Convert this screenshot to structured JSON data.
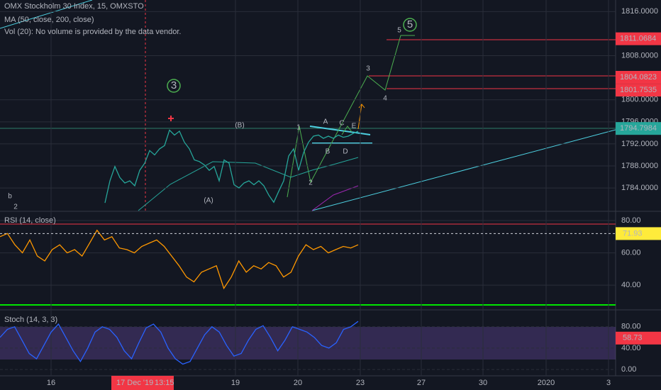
{
  "header": {
    "title": "OMX Stockholm 30 Index, 15, OMXSTO",
    "ma": "MA (50, close, 200, close)",
    "vol": "Vol (20): No volume is provided by the data vendor."
  },
  "price_axis": {
    "ylim": [
      1779.9,
      1818.1
    ],
    "ticks": [
      {
        "value": 1816,
        "label": "1816.0000"
      },
      {
        "value": 1808,
        "label": "1808.0000"
      },
      {
        "value": 1800,
        "label": "1800.0000"
      },
      {
        "value": 1796,
        "label": "1796.0000"
      },
      {
        "value": 1792,
        "label": "1792.0000"
      },
      {
        "value": 1788,
        "label": "1788.0000"
      },
      {
        "value": 1784,
        "label": "1784.0000"
      }
    ]
  },
  "price_tags": [
    {
      "value": 1811.0684,
      "color": "#f23645"
    },
    {
      "value": 1804.0823,
      "color": "#f23645"
    },
    {
      "value": 1801.7535,
      "color": "#f23645"
    },
    {
      "value": 1794.7984,
      "color": "#26a69a"
    }
  ],
  "price": {
    "color": "#26a69a",
    "values": [
      1781.3,
      1785.3,
      1787.9,
      1785.9,
      1784.9,
      1785.3,
      1784.4,
      1787.2,
      1788.5,
      1790.8,
      1790.0,
      1791.1,
      1791.7,
      1794.5,
      1793.6,
      1794.3,
      1792.3,
      1791.1,
      1789.1,
      1788.8,
      1788.2,
      1787.2,
      1787.9,
      1785.3,
      1789.1,
      1788.5,
      1784.6,
      1784.0,
      1784.9,
      1785.3,
      1784.6,
      1785.3,
      1784.4,
      1782.7,
      1781.4,
      1783.4,
      1785.3,
      1789.8,
      1791.1,
      1787.2,
      1790.4,
      1792.3,
      1793.4,
      1793.6,
      1793.0,
      1793.4,
      1793.0,
      1793.6,
      1793.2,
      1793.4,
      1793.9,
      1794.3
    ]
  },
  "annotations": [
    {
      "text": "3",
      "color": "#4caf50",
      "circled": true
    },
    {
      "text": "5",
      "color": "#4caf50",
      "circled": true
    },
    {
      "text": "b",
      "color": "#f23645",
      "circled": false
    },
    {
      "text": "2",
      "color": "#b2b5be",
      "circled": false
    },
    {
      "text": "(B)",
      "color": "#4dd0e1",
      "circled": false
    },
    {
      "text": "(A)",
      "color": "#4dd0e1",
      "circled": false
    },
    {
      "text": "1",
      "color": "#4caf50",
      "circled": false
    },
    {
      "text": "2",
      "color": "#4caf50",
      "circled": false
    },
    {
      "text": "A",
      "color": "#d1d4dc",
      "circled": false
    },
    {
      "text": "B",
      "color": "#d1d4dc",
      "circled": false
    },
    {
      "text": "C",
      "color": "#d1d4dc",
      "circled": false
    },
    {
      "text": "D",
      "color": "#d1d4dc",
      "circled": false
    },
    {
      "text": "E",
      "color": "#d1d4dc",
      "circled": false
    },
    {
      "text": "3",
      "color": "#4caf50",
      "circled": false
    },
    {
      "text": "4",
      "color": "#4caf50",
      "circled": false
    },
    {
      "text": "5",
      "color": "#4caf50",
      "circled": false
    }
  ],
  "rsi": {
    "title": "RSI (14, close)",
    "color": "#ff9800",
    "ylim": [
      25.1,
      85.3
    ],
    "ticks": [
      {
        "value": 80,
        "label": "80.00"
      },
      {
        "value": 60,
        "label": "60.00"
      },
      {
        "value": 40,
        "label": "40.00"
      }
    ],
    "tag": 71.93,
    "values": [
      70,
      72,
      65,
      60,
      68,
      58,
      55,
      62,
      65,
      60,
      62,
      58,
      66,
      74,
      68,
      70,
      63,
      62,
      60,
      64,
      66,
      68,
      64,
      58,
      52,
      45,
      42,
      48,
      50,
      52,
      38,
      45,
      55,
      48,
      52,
      50,
      54,
      52,
      45,
      48,
      58,
      65,
      62,
      64,
      60,
      62,
      64,
      63,
      65
    ]
  },
  "stoch": {
    "title": "Stoch (14, 3, 3)",
    "color": "#2962ff",
    "ylim": [
      -10.5,
      110.2
    ],
    "ticks": [
      {
        "value": 80,
        "label": "80.00"
      },
      {
        "value": 40,
        "label": "40.00"
      },
      {
        "value": 0,
        "label": "0.00"
      }
    ],
    "tag": 58.73,
    "values": [
      60,
      75,
      80,
      55,
      30,
      20,
      45,
      70,
      85,
      60,
      35,
      15,
      40,
      70,
      80,
      75,
      60,
      35,
      20,
      50,
      78,
      85,
      70,
      40,
      20,
      10,
      15,
      40,
      65,
      80,
      70,
      45,
      25,
      30,
      55,
      75,
      82,
      60,
      35,
      55,
      80,
      75,
      70,
      60,
      45,
      40,
      50,
      75,
      80,
      90
    ]
  },
  "time_axis": {
    "labels": [
      "16",
      "19",
      "20",
      "23",
      "27",
      "30",
      "2020",
      "3"
    ],
    "crosshair_date": "17 Dec '19",
    "crosshair_time": "13:15"
  }
}
